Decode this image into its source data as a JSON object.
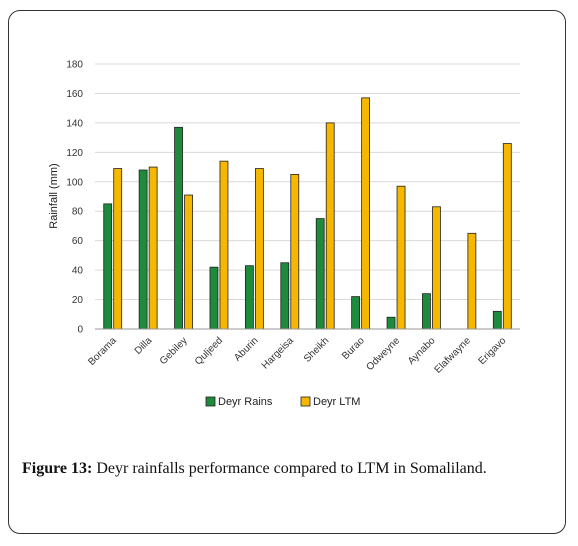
{
  "figure": {
    "label": "Figure 13:",
    "caption": "Deyr rainfalls performance compared to LTM in Somaliland."
  },
  "chart_data": {
    "type": "bar",
    "ylabel": "Rainfall (mm)",
    "xlabel": "",
    "ylim": [
      0,
      180
    ],
    "yticks": [
      0,
      20,
      40,
      60,
      80,
      100,
      120,
      140,
      160,
      180
    ],
    "grid": true,
    "legend_position": "bottom",
    "categories": [
      "Borama",
      "Dilla",
      "Gebiley",
      "Quljeed",
      "Aburin",
      "Hargeisa",
      "Sheikh",
      "Burao",
      "Odweyne",
      "Aynabo",
      "Elafwayne",
      "Erigavo"
    ],
    "series": [
      {
        "name": "Deyr Rains",
        "color": "#1e8a3c",
        "values": [
          85,
          108,
          137,
          42,
          43,
          45,
          75,
          22,
          8,
          24,
          0,
          12
        ]
      },
      {
        "name": "Deyr LTM",
        "color": "#f5b700",
        "values": [
          109,
          110,
          91,
          114,
          109,
          105,
          140,
          157,
          97,
          83,
          65,
          126
        ]
      }
    ]
  }
}
